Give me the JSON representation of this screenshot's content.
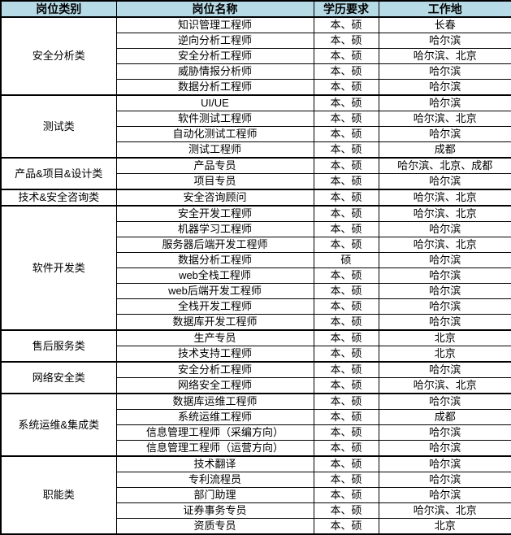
{
  "colors": {
    "header_bg": "#b6dae6",
    "border": "#000000",
    "text": "#000000",
    "row_bg": "#ffffff"
  },
  "header": {
    "col_category": "岗位类别",
    "col_position": "岗位名称",
    "col_education": "学历要求",
    "col_location": "工作地"
  },
  "groups": [
    {
      "category": "安全分析类",
      "rows": [
        {
          "position": "知识管理工程师",
          "education": "本、硕",
          "location": "长春"
        },
        {
          "position": "逆向分析工程师",
          "education": "本、硕",
          "location": "哈尔滨"
        },
        {
          "position": "安全分析工程师",
          "education": "本、硕",
          "location": "哈尔滨、北京"
        },
        {
          "position": "威胁情报分析师",
          "education": "本、硕",
          "location": "哈尔滨"
        },
        {
          "position": "数据分析工程师",
          "education": "本、硕",
          "location": "哈尔滨"
        }
      ]
    },
    {
      "category": "测试类",
      "rows": [
        {
          "position": "UI/UE",
          "education": "本、硕",
          "location": "哈尔滨"
        },
        {
          "position": "软件测试工程师",
          "education": "本、硕",
          "location": "哈尔滨、北京"
        },
        {
          "position": "自动化测试工程师",
          "education": "本、硕",
          "location": "哈尔滨"
        },
        {
          "position": "测试工程师",
          "education": "本、硕",
          "location": "成都"
        }
      ]
    },
    {
      "category": "产品&项目&设计类",
      "rows": [
        {
          "position": "产品专员",
          "education": "本、硕",
          "location": "哈尔滨、北京、成都"
        },
        {
          "position": "项目专员",
          "education": "本、硕",
          "location": "哈尔滨"
        }
      ]
    },
    {
      "category": "技术&安全咨询类",
      "rows": [
        {
          "position": "安全咨询顾问",
          "education": "本、硕",
          "location": "哈尔滨、北京"
        }
      ]
    },
    {
      "category": "软件开发类",
      "rows": [
        {
          "position": "安全开发工程师",
          "education": "本、硕",
          "location": "哈尔滨、北京"
        },
        {
          "position": "机器学习工程师",
          "education": "本、硕",
          "location": "哈尔滨"
        },
        {
          "position": "服务器后端开发工程师",
          "education": "本、硕",
          "location": "哈尔滨、北京"
        },
        {
          "position": "数据分析工程师",
          "education": "硕",
          "location": "哈尔滨"
        },
        {
          "position": "web全栈工程师",
          "education": "本、硕",
          "location": "哈尔滨"
        },
        {
          "position": "web后端开发工程师",
          "education": "本、硕",
          "location": "哈尔滨"
        },
        {
          "position": "全栈开发工程师",
          "education": "本、硕",
          "location": "哈尔滨"
        },
        {
          "position": "数据库开发工程师",
          "education": "本、硕",
          "location": "哈尔滨"
        }
      ]
    },
    {
      "category": "售后服务类",
      "rows": [
        {
          "position": "生产专员",
          "education": "本、硕",
          "location": "北京"
        },
        {
          "position": "技术支持工程师",
          "education": "本、硕",
          "location": "北京"
        }
      ]
    },
    {
      "category": "网络安全类",
      "rows": [
        {
          "position": "安全分析工程师",
          "education": "本、硕",
          "location": "哈尔滨"
        },
        {
          "position": "网络安全工程师",
          "education": "本、硕",
          "location": "哈尔滨、北京"
        }
      ]
    },
    {
      "category": "系统运维&集成类",
      "rows": [
        {
          "position": "数据库运维工程师",
          "education": "本、硕",
          "location": "哈尔滨"
        },
        {
          "position": "系统运维工程师",
          "education": "本、硕",
          "location": "成都"
        },
        {
          "position": "信息管理工程师（采编方向）",
          "education": "本、硕",
          "location": "哈尔滨"
        },
        {
          "position": "信息管理工程师（运营方向）",
          "education": "本、硕",
          "location": "哈尔滨"
        }
      ]
    },
    {
      "category": "职能类",
      "rows": [
        {
          "position": "技术翻译",
          "education": "本、硕",
          "location": "哈尔滨"
        },
        {
          "position": "专利流程员",
          "education": "本、硕",
          "location": "哈尔滨"
        },
        {
          "position": "部门助理",
          "education": "本、硕",
          "location": "哈尔滨"
        },
        {
          "position": "证券事务专员",
          "education": "本、硕",
          "location": "哈尔滨、北京"
        },
        {
          "position": "资质专员",
          "education": "本、硕",
          "location": "北京"
        }
      ]
    }
  ]
}
